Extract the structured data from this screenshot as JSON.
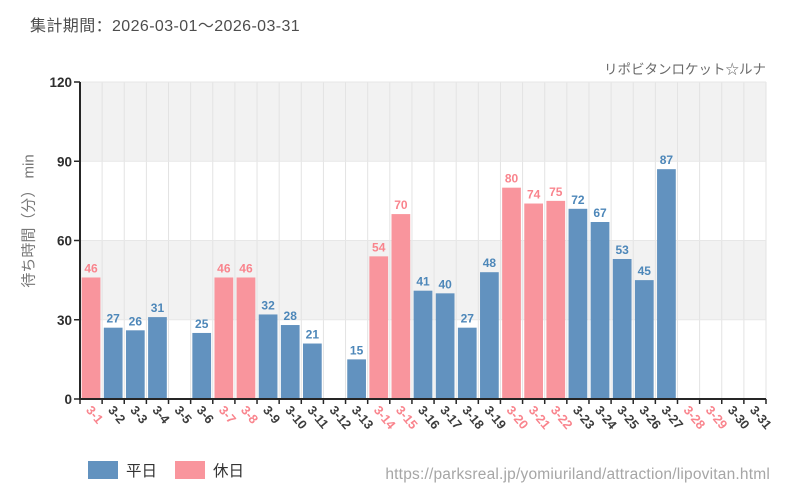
{
  "header": {
    "period_label": "集計期間：2026-03-01～2026-03-31"
  },
  "chart_data": {
    "type": "bar",
    "title": "リポビタンロケット☆ルナ",
    "ylabel": "待ち時間（分） min",
    "ylim": [
      0,
      120
    ],
    "yticks": [
      0,
      30,
      60,
      90,
      120
    ],
    "categories": [
      "3-1",
      "3-2",
      "3-3",
      "3-4",
      "3-5",
      "3-6",
      "3-7",
      "3-8",
      "3-9",
      "3-10",
      "3-11",
      "3-12",
      "3-13",
      "3-14",
      "3-15",
      "3-16",
      "3-17",
      "3-18",
      "3-19",
      "3-20",
      "3-21",
      "3-22",
      "3-23",
      "3-24",
      "3-25",
      "3-26",
      "3-27",
      "3-28",
      "3-29",
      "3-30",
      "3-31"
    ],
    "values": [
      46,
      27,
      26,
      31,
      null,
      25,
      46,
      46,
      32,
      28,
      21,
      null,
      15,
      54,
      70,
      41,
      40,
      27,
      48,
      80,
      74,
      75,
      72,
      67,
      53,
      45,
      87,
      null,
      null,
      null,
      null
    ],
    "day_types": [
      "holiday",
      "weekday",
      "weekday",
      "weekday",
      "weekday",
      "weekday",
      "holiday",
      "holiday",
      "weekday",
      "weekday",
      "weekday",
      "weekday",
      "weekday",
      "holiday",
      "holiday",
      "weekday",
      "weekday",
      "weekday",
      "weekday",
      "holiday",
      "holiday",
      "holiday",
      "weekday",
      "weekday",
      "weekday",
      "weekday",
      "weekday",
      "holiday",
      "holiday",
      "weekday",
      "weekday"
    ],
    "series": [
      {
        "key": "weekday",
        "name": "平日",
        "color": "#6292bf",
        "label_color": "#4d87b9"
      },
      {
        "key": "holiday",
        "name": "休日",
        "color": "#f9959d",
        "label_color": "#f9848d"
      }
    ],
    "band_color": "#f2f2f2",
    "grid_on": true,
    "legend_position": "bottom-left"
  },
  "footer": {
    "url": "https://parksreal.jp/yomiuriland/attraction/lipovitan.html"
  }
}
